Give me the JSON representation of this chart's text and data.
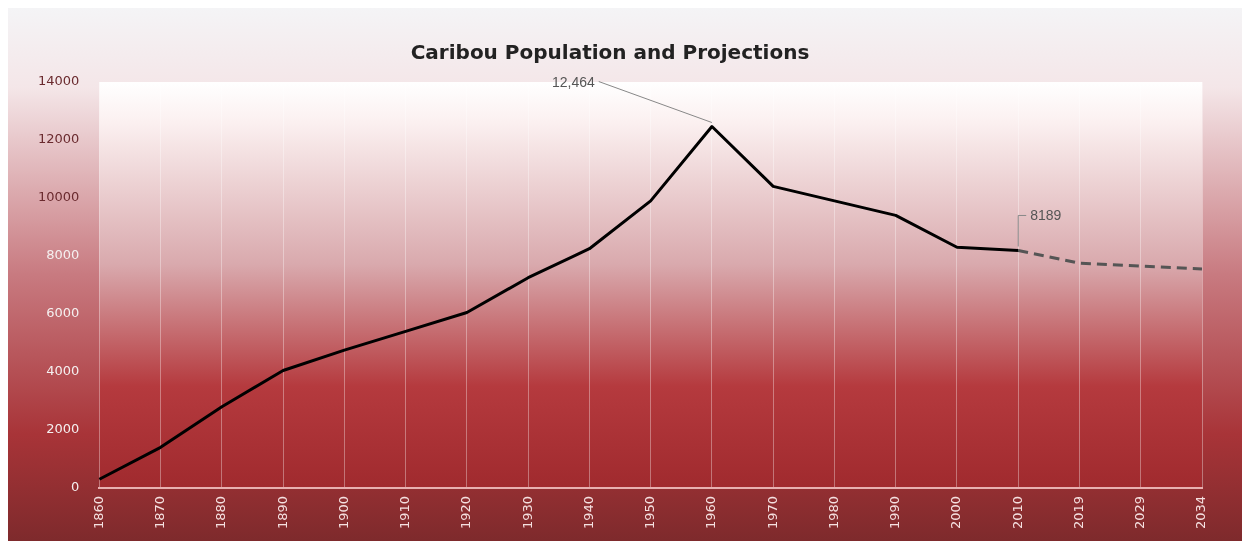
{
  "chart_data": {
    "type": "line",
    "title": "Caribou Population and Projections",
    "categories": [
      "1860",
      "1870",
      "1880",
      "1890",
      "1900",
      "1910",
      "1920",
      "1930",
      "1940",
      "1950",
      "1960",
      "1970",
      "1980",
      "1990",
      "2000",
      "2010",
      "2019",
      "2029",
      "2034"
    ],
    "series": [
      {
        "color": "#000000",
        "line_style": "solid",
        "values": [
          300,
          1400,
          2800,
          4050,
          4750,
          5400,
          6050,
          7250,
          8250,
          9900,
          12464,
          10400,
          9900,
          9400,
          8300,
          8189,
          null,
          null,
          null
        ]
      },
      {
        "color": "#555555",
        "line_style": "dashed",
        "values": [
          null,
          null,
          null,
          null,
          null,
          null,
          null,
          null,
          null,
          null,
          null,
          null,
          null,
          null,
          null,
          8189,
          7750,
          7650,
          7550
        ]
      }
    ],
    "ylim": [
      0,
      14000
    ],
    "yticks": [
      0,
      2000,
      4000,
      6000,
      8000,
      10000,
      12000,
      14000
    ],
    "grid": "x",
    "legend": false,
    "marker": "none",
    "annotations": [
      {
        "text": "12,464",
        "x": "1960",
        "y": 12464
      },
      {
        "text": "8189",
        "x": "2010",
        "y": 8189
      }
    ]
  }
}
